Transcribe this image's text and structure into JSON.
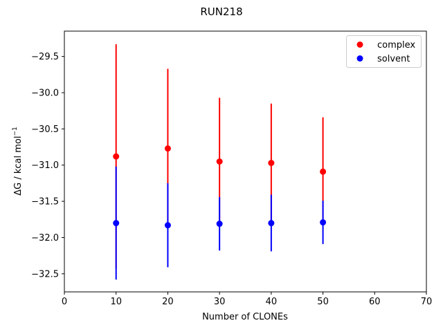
{
  "chart_data": {
    "type": "scatter",
    "title": "RUN218",
    "xlabel": "Number of CLONEs",
    "ylabel": "ΔG / kcal mol",
    "ylabel_sup": "−1",
    "xlim": [
      0,
      70
    ],
    "ylim": [
      -32.75,
      -29.15
    ],
    "xticks": [
      0,
      10,
      20,
      30,
      40,
      50,
      60,
      70
    ],
    "xtick_labels": [
      "0",
      "10",
      "20",
      "30",
      "40",
      "50",
      "60",
      "70"
    ],
    "yticks": [
      -32.5,
      -32.0,
      -31.5,
      -31.0,
      -30.5,
      -30.0,
      -29.5
    ],
    "ytick_labels": [
      "−32.5",
      "−32.0",
      "−31.5",
      "−31.0",
      "−30.5",
      "−30.0",
      "−29.5"
    ],
    "grid": false,
    "legend_position": "top-right",
    "series": [
      {
        "name": "complex",
        "color": "#ff0000",
        "x": [
          10,
          20,
          30,
          40,
          50
        ],
        "y": [
          -30.88,
          -30.77,
          -30.95,
          -30.97,
          -31.09
        ],
        "yerr": [
          1.55,
          1.1,
          0.88,
          0.82,
          0.75
        ]
      },
      {
        "name": "solvent",
        "color": "#0000ff",
        "x": [
          10,
          20,
          30,
          40,
          50
        ],
        "y": [
          -31.8,
          -31.83,
          -31.81,
          -31.8,
          -31.79
        ],
        "yerr": [
          0.78,
          0.58,
          0.37,
          0.39,
          0.3
        ]
      }
    ]
  }
}
